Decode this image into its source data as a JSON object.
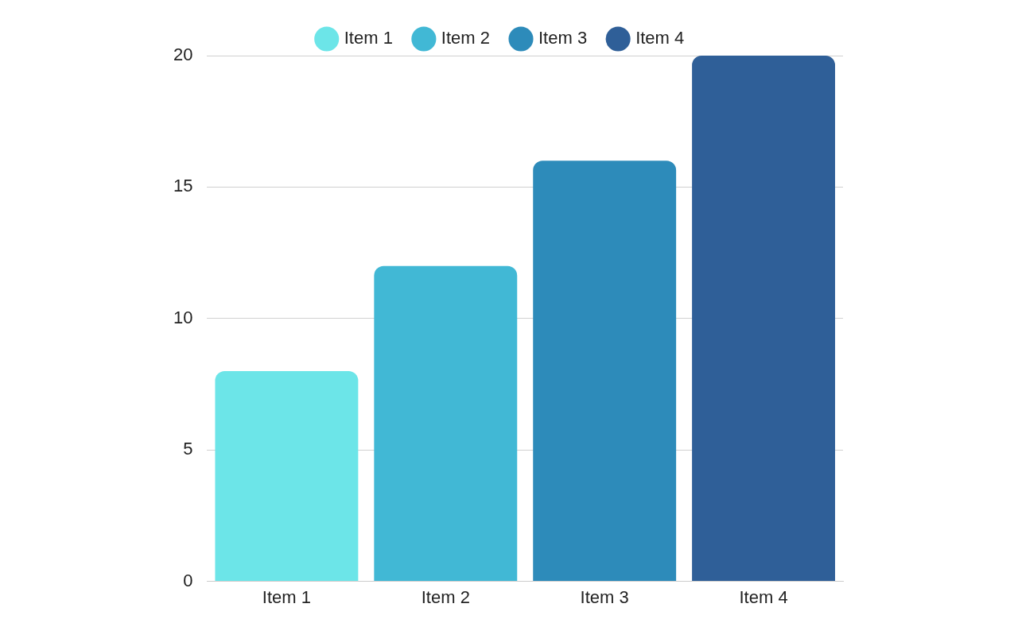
{
  "chart_data": {
    "type": "bar",
    "categories": [
      "Item 1",
      "Item 2",
      "Item 3",
      "Item 4"
    ],
    "series": [
      {
        "name": "Item 1",
        "color": "#6ce5e8",
        "values": [
          8,
          null,
          null,
          null
        ]
      },
      {
        "name": "Item 2",
        "color": "#41b8d5",
        "values": [
          null,
          12,
          null,
          null
        ]
      },
      {
        "name": "Item 3",
        "color": "#2d8bba",
        "values": [
          null,
          null,
          16,
          null
        ]
      },
      {
        "name": "Item 4",
        "color": "#2f5f98",
        "values": [
          null,
          null,
          null,
          20
        ]
      }
    ],
    "ylim": [
      0,
      20
    ],
    "yticks": [
      0,
      5,
      10,
      15,
      20
    ],
    "grid": "y",
    "legend": "top"
  }
}
